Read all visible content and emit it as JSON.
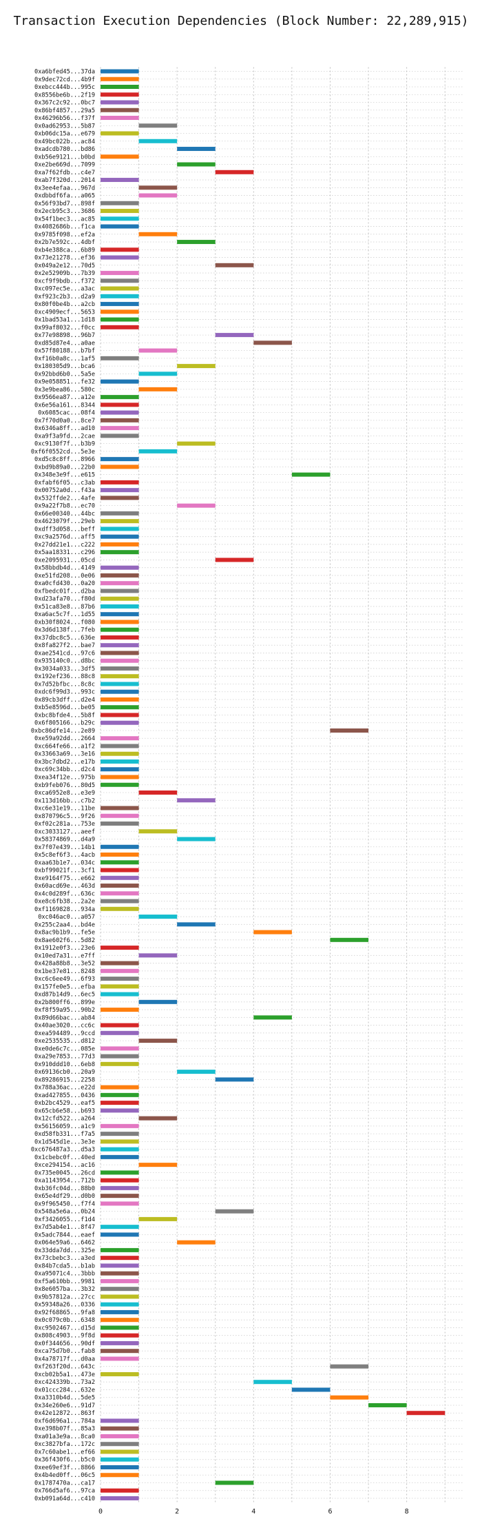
{
  "chart_data": {
    "type": "bar",
    "orientation": "horizontal",
    "title": "Transaction Execution Dependencies (Block Number: 22,289,915)",
    "xlabel": "",
    "ylabel": "",
    "x_ticks": [
      0,
      2,
      4,
      6,
      8
    ],
    "xlim": [
      0,
      9.5
    ],
    "grid": true,
    "grid_style": "dotted",
    "palette": [
      "#1f77b4",
      "#ff7f0e",
      "#2ca02c",
      "#d62728",
      "#9467bd",
      "#8c564b",
      "#e377c2",
      "#7f7f7f",
      "#bcbd22",
      "#17becf"
    ],
    "categories": [
      "0xa6bfed45...37da",
      "0x9dec72cd...4b9f",
      "0xebcc444b...995c",
      "0x8556be6b...2f19",
      "0x367c2c92...0bc7",
      "0x86bf4857...29a5",
      "0x46296b56...f37f",
      "0x0ad62953...5b87",
      "0xb06dc15a...e679",
      "0x49bc022b...ac84",
      "0xadcdb780...bd86",
      "0xb56e9121...b0bd",
      "0xe2be669d...7099",
      "0xa7f62fdb...c4e7",
      "0xab7f320d...2014",
      "0x3ee4efaa...967d",
      "0xdbbdf6fa...a065",
      "0x56f93bd7...898f",
      "0x2ecb95c3...3686",
      "0x54f1bec3...ac85",
      "0x4082686b...f1ca",
      "0x9785f098...ef2a",
      "0x2b7e592c...4dbf",
      "0xb4e388ca...6b89",
      "0x73e21278...ef36",
      "0x049a2e12...70d5",
      "0x2e52909b...7b39",
      "0xcf9f9bdb...f372",
      "0xc097ec5e...a3ac",
      "0xf923c2b3...d2a9",
      "0x80f0be4b...a2cb",
      "0xc4909ecf...5653",
      "0x1bad53a1...1d18",
      "0x99af8032...f0cc",
      "0x77e98898...96b7",
      "0xd85d87e4...a0ae",
      "0x57f80188...b7bf",
      "0xf16b0a8c...1af5",
      "0x180305d9...bca6",
      "0x92bbd6b0...5a5e",
      "0x9e058851...fe32",
      "0x3e9bea86...580c",
      "0x9566ea87...a12e",
      "0x6e56a161...8344",
      "0x6085cac...08f4",
      "0x7f70d0a0...8ce7",
      "0x6346a8ff...ad10",
      "0xa9f3a9fd...2cae",
      "0xc9130f7f...b3b9",
      "0xf6f0552cd...5e3e",
      "0xd5c8c8ff...8966",
      "0xbd9b89a0...22b0",
      "0x348e3e9f...e615",
      "0xfabf6f05...c3ab",
      "0x00752a0d...f43a",
      "0x532ffde2...4afe",
      "0x9a22f7b8...ec70",
      "0x66e00340...44bc",
      "0x4623079f...29eb",
      "0xdff3d058...beff",
      "0xc9a2576d...aff5",
      "0x27dd21e1...c222",
      "0x5aa18331...c296",
      "0xe2095931...05cd",
      "0x58bbdb4d...4149",
      "0xe51fd208...0e06",
      "0xa0cfd430...0a20",
      "0xfbedc01f...d2ba",
      "0xd23afa70...f80d",
      "0x51ca83e8...87b6",
      "0xa6ac5c7f...1d55",
      "0xb30f8024...f080",
      "0x3d6d138f...7feb",
      "0x37dbc8c5...636e",
      "0x8fa827f2...bae7",
      "0xae2541cd...97c6",
      "0x935140c0...d8bc",
      "0x3034a033...3df5",
      "0x192ef236...88c8",
      "0x7d52bfbc...8c8c",
      "0xdc6f99d3...993c",
      "0x89cb3dff...d2e4",
      "0xb5e8596d...be05",
      "0xbc8bfde4...5b8f",
      "0x6f805166...b29c",
      "0xbc86dfe14...2e89",
      "0xe59a92dd...2664",
      "0xc664fe66...a1f2",
      "0x33663a69...3e16",
      "0x3bc7dbd2...e17b",
      "0xc69c34bb...d2c4",
      "0xea34f12e...975b",
      "0xb9feb076...80d5",
      "0xca6952e8...e3e9",
      "0x113d16bb...c7b2",
      "0xc6e31e19...11be",
      "0x870796c5...9f26",
      "0xf02c281a...753e",
      "0xc3033127...aeef",
      "0x58374869...d4a9",
      "0x7f07e439...14b1",
      "0x5c8ef6f3...4acb",
      "0xaa63b1e7...034c",
      "0xbf99021f...3cf1",
      "0xe9164f75...e662",
      "0x60acd69e...463d",
      "0x4c0d289f...636c",
      "0xe8c6fb38...2a2e",
      "0xf1169828...934a",
      "0xc046ac0...a057",
      "0x255c2aa4...bd4e",
      "0x8ac9b1b9...fe5e",
      "0x8ae602f6...5d82",
      "0x1912e0f3...23e6",
      "0x10ed7a31...e7ff",
      "0x428a88b8...3e52",
      "0x1be37e81...8248",
      "0xc6c6ee49...6f93",
      "0x157fe0e5...efba",
      "0xd87b14d9...6ec5",
      "0x2b800ff6...899e",
      "0xf8f59a95...90b2",
      "0x89d66bac...ab84",
      "0x40ae3020...cc6c",
      "0xea594489...9ccd",
      "0xe2535535...d812",
      "0xe0de6c7c...085e",
      "0xa29e7853...77d3",
      "0x910ddd10...6eb8",
      "0x69136cb0...20a9",
      "0x89286915...2258",
      "0x788a36ac...e22d",
      "0xad427855...0436",
      "0xb2bc4529...eaf5",
      "0x65cb6e58...b693",
      "0x12cfd522...a264",
      "0x56156059...a1c9",
      "0xd58fb331...f7a5",
      "0x1d545d1e...3e3e",
      "0xc676487a3...d5a3",
      "0x1cbebc0f...40ed",
      "0xce294154...ac16",
      "0x735e0045...26cd",
      "0xa1143954...712b",
      "0xb36fc04d...88b0",
      "0x65e4df29...d0b0",
      "0x9f965450...f7f4",
      "0x548a5e6a...0b24",
      "0xf3426055...f1d4",
      "0x7d5ab4e1...8f47",
      "0x5adc7844...eaef",
      "0x064e59a6...6462",
      "0x33dda7dd...325e",
      "0x73cbebc3...a3ed",
      "0x84b7cda5...b1ab",
      "0xa95071c4...3bbb",
      "0xf5a610bb...9981",
      "0x8e6057ba...3b32",
      "0x9b57812a...27cc",
      "0x59348a26...0336",
      "0x92f68865...9fa8",
      "0x0c079c0b...6348",
      "0xc9502467...d15d",
      "0x808c4903...9f8d",
      "0x0f344656...90df",
      "0xca75d7b0...fab8",
      "0x4a78717f...d0aa",
      "0xf263f20d...643c",
      "0xcb02b5a1...473e",
      "0xc424339b...73a2",
      "0x01ccc284...632e",
      "0xa3310b4d...5de5",
      "0x34e260e6...91d7",
      "0x42e12872...863f",
      "0xf6d696a1...784a",
      "0xe398b07f...85a3",
      "0xa01a3e9a...8ca0",
      "0xc3827bfa...172c",
      "0x7c60abe1...ef66",
      "0x36f430f6...b5c0",
      "0xee69ef3f...8866",
      "0x4b4ed0ff...06c5",
      "0x1787470a...ca17",
      "0x766d5af6...97ca",
      "0xb091a64d...c410"
    ],
    "start": [
      0,
      0,
      0,
      0,
      0,
      0,
      0,
      1,
      0,
      1,
      2,
      0,
      2,
      3,
      0,
      1,
      1,
      0,
      0,
      0,
      0,
      1,
      2,
      0,
      0,
      3,
      0,
      0,
      0,
      0,
      0,
      0,
      0,
      0,
      3,
      4,
      1,
      0,
      2,
      1,
      0,
      1,
      0,
      0,
      0,
      0,
      0,
      0,
      2,
      1,
      0,
      0,
      5,
      0,
      0,
      0,
      2,
      0,
      0,
      0,
      0,
      0,
      0,
      3,
      0,
      0,
      0,
      0,
      0,
      0,
      0,
      0,
      0,
      0,
      0,
      0,
      0,
      0,
      0,
      0,
      0,
      0,
      0,
      0,
      0,
      6,
      0,
      0,
      0,
      0,
      0,
      0,
      0,
      1,
      2,
      0,
      0,
      0,
      1,
      2,
      0,
      0,
      0,
      0,
      0,
      0,
      0,
      0,
      0,
      1,
      2,
      4,
      6,
      0,
      1,
      0,
      0,
      0,
      0,
      0,
      1,
      0,
      4,
      0,
      0,
      1,
      0,
      0,
      0,
      2,
      3,
      0,
      0,
      0,
      0,
      1,
      0,
      0,
      0,
      0,
      0,
      1,
      0,
      0,
      0,
      0,
      0,
      3,
      1,
      0,
      0,
      2,
      0,
      0,
      0,
      0,
      0,
      0,
      0,
      0,
      0,
      0,
      0,
      0,
      0,
      0,
      0,
      6,
      0,
      4,
      5,
      6,
      7,
      8,
      0,
      0,
      0,
      0,
      0,
      0,
      0,
      0,
      3,
      0,
      0
    ],
    "end": [
      1,
      1,
      1,
      1,
      1,
      1,
      1,
      2,
      1,
      2,
      3,
      1,
      3,
      4,
      1,
      2,
      2,
      1,
      1,
      1,
      1,
      2,
      3,
      1,
      1,
      4,
      1,
      1,
      1,
      1,
      1,
      1,
      1,
      1,
      4,
      5,
      2,
      1,
      3,
      2,
      1,
      2,
      1,
      1,
      1,
      1,
      1,
      1,
      3,
      2,
      1,
      1,
      6,
      1,
      1,
      1,
      3,
      1,
      1,
      1,
      1,
      1,
      1,
      4,
      1,
      1,
      1,
      1,
      1,
      1,
      1,
      1,
      1,
      1,
      1,
      1,
      1,
      1,
      1,
      1,
      1,
      1,
      1,
      1,
      1,
      7,
      1,
      1,
      1,
      1,
      1,
      1,
      1,
      2,
      3,
      1,
      1,
      1,
      2,
      3,
      1,
      1,
      1,
      1,
      1,
      1,
      1,
      1,
      1,
      2,
      3,
      5,
      7,
      1,
      2,
      1,
      1,
      1,
      1,
      1,
      2,
      1,
      5,
      1,
      1,
      2,
      1,
      1,
      1,
      3,
      4,
      1,
      1,
      1,
      1,
      2,
      1,
      1,
      1,
      1,
      1,
      2,
      1,
      1,
      1,
      1,
      1,
      4,
      2,
      1,
      1,
      3,
      1,
      1,
      1,
      1,
      1,
      1,
      1,
      1,
      1,
      1,
      1,
      1,
      1,
      1,
      1,
      7,
      1,
      5,
      6,
      7,
      8,
      9,
      1,
      1,
      1,
      1,
      1,
      1,
      1,
      1,
      4,
      1,
      1
    ],
    "color_index": [
      0,
      1,
      2,
      3,
      4,
      5,
      6,
      7,
      8,
      9,
      0,
      1,
      2,
      3,
      4,
      5,
      6,
      7,
      8,
      9,
      0,
      1,
      2,
      3,
      4,
      5,
      6,
      7,
      8,
      9,
      0,
      1,
      2,
      3,
      4,
      5,
      6,
      7,
      8,
      9,
      0,
      1,
      2,
      3,
      4,
      5,
      6,
      7,
      8,
      9,
      0,
      1,
      2,
      3,
      4,
      5,
      6,
      7,
      8,
      9,
      0,
      1,
      2,
      3,
      4,
      5,
      6,
      7,
      8,
      9,
      0,
      1,
      2,
      3,
      4,
      5,
      6,
      7,
      8,
      9,
      0,
      1,
      2,
      3,
      4,
      5,
      6,
      7,
      8,
      9,
      0,
      1,
      2,
      3,
      4,
      5,
      6,
      7,
      8,
      9,
      0,
      1,
      2,
      3,
      4,
      5,
      6,
      7,
      8,
      9,
      0,
      1,
      2,
      3,
      4,
      5,
      6,
      7,
      8,
      9,
      0,
      1,
      2,
      3,
      4,
      5,
      6,
      7,
      8,
      9,
      0,
      1,
      2,
      3,
      4,
      5,
      6,
      7,
      8,
      9,
      0,
      1,
      2,
      3,
      4,
      5,
      6,
      7,
      8,
      9,
      0,
      1,
      2,
      3,
      4,
      5,
      6,
      7,
      8,
      9,
      0,
      1,
      2,
      3,
      4,
      5,
      6,
      7,
      8,
      9,
      0,
      1,
      2,
      3,
      4,
      5,
      6,
      7,
      8,
      9,
      0,
      1,
      2,
      3,
      4,
      5,
      6,
      7,
      8,
      9,
      0,
      1,
      2,
      3,
      4
    ]
  }
}
